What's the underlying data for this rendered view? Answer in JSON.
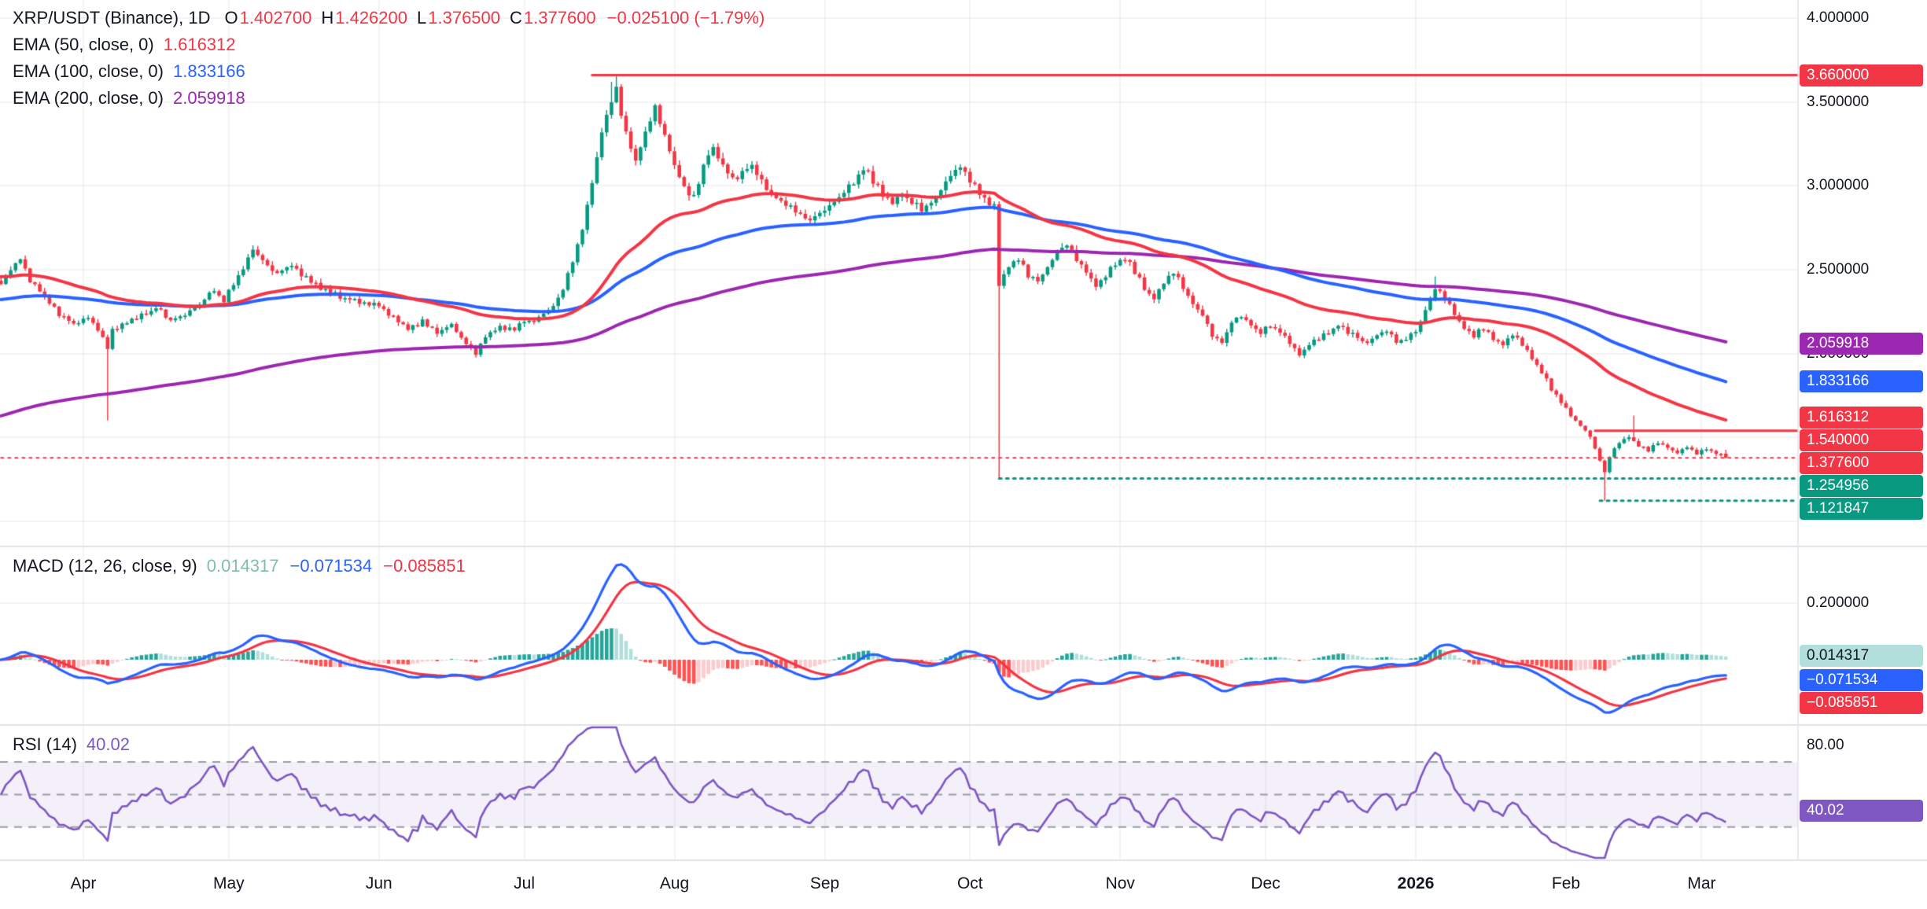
{
  "legend": {
    "symbol": "XRP/USDT (Binance), 1D",
    "o_label": "O",
    "o": "1.402700",
    "h_label": "H",
    "h": "1.426200",
    "l_label": "L",
    "l": "1.376500",
    "c_label": "C",
    "c": "1.377600",
    "change": "−0.025100 (−1.79%)",
    "ema50_label": "EMA (50, close, 0)",
    "ema50_value": "1.616312",
    "ema100_label": "EMA (100, close, 0)",
    "ema100_value": "1.833166",
    "ema200_label": "EMA (200, close, 0)",
    "ema200_value": "2.059918",
    "macd_label": "MACD (12, 26, close, 9)",
    "macd_hist": "0.014317",
    "macd_line": "−0.071534",
    "macd_signal": "−0.085851",
    "rsi_label": "RSI (14)",
    "rsi_value": "40.02"
  },
  "colors": {
    "up": "#089981",
    "down": "#f23645",
    "ema50": "#f23645",
    "ema100": "#2962ff",
    "ema200": "#9c27b0",
    "macd_line": "#2962ff",
    "macd_signal": "#f23645",
    "hist_pos": "#26a69a",
    "hist_pos_light": "#b2dfdb",
    "hist_neg": "#ff5252",
    "hist_neg_light": "#fccbcd",
    "hist_legend": "#7fbdb0",
    "rsi": "#7e57c2",
    "rsi_band_fill": "rgba(126,87,194,0.09)",
    "band_line": "#9a9daa",
    "grid": "rgba(19,23,39,0.06)",
    "divider": "#e0e3eb",
    "text": "#131722"
  },
  "axes": {
    "price_ticks": [
      {
        "label": "4.000000",
        "price": 4.0
      },
      {
        "label": "3.500000",
        "price": 3.5
      },
      {
        "label": "3.000000",
        "price": 3.0
      },
      {
        "label": "2.500000",
        "price": 2.5
      },
      {
        "label": "2.000000",
        "price": 2.0
      }
    ],
    "macd_ticks": [
      {
        "label": "0.200000",
        "value": 0.2
      }
    ],
    "rsi_ticks": [
      {
        "label": "80.00",
        "value": 80
      }
    ],
    "time_ticks": [
      {
        "label": "Apr",
        "day": 17,
        "bold": false
      },
      {
        "label": "May",
        "day": 47,
        "bold": false
      },
      {
        "label": "Jun",
        "day": 78,
        "bold": false
      },
      {
        "label": "Jul",
        "day": 108,
        "bold": false
      },
      {
        "label": "Aug",
        "day": 139,
        "bold": false
      },
      {
        "label": "Sep",
        "day": 170,
        "bold": false
      },
      {
        "label": "Oct",
        "day": 200,
        "bold": false
      },
      {
        "label": "Nov",
        "day": 231,
        "bold": false
      },
      {
        "label": "Dec",
        "day": 261,
        "bold": false
      },
      {
        "label": "2026",
        "day": 292,
        "bold": true
      },
      {
        "label": "Feb",
        "day": 323,
        "bold": false
      },
      {
        "label": "Mar",
        "day": 351,
        "bold": false
      }
    ]
  },
  "price_labels": [
    {
      "panel": "main",
      "text": "3.660000",
      "bg": "#f23645",
      "fg": "#ffffff",
      "at": 3.66
    },
    {
      "panel": "main",
      "text": "2.059918",
      "bg": "#9c27b0",
      "fg": "#ffffff",
      "at": 2.059918
    },
    {
      "panel": "main",
      "text": "1.833166",
      "bg": "#2962ff",
      "fg": "#ffffff",
      "at": 1.833166
    },
    {
      "panel": "main",
      "text": "1.616312",
      "bg": "#f23645",
      "fg": "#ffffff",
      "at": 1.616312
    },
    {
      "panel": "main",
      "text": "1.540000",
      "bg": "#f23645",
      "fg": "#ffffff",
      "at": 1.54
    },
    {
      "panel": "main",
      "text": "1.377600",
      "bg": "#f23645",
      "fg": "#ffffff",
      "at": 1.3776
    },
    {
      "panel": "main",
      "text": "1.254956",
      "bg": "#089981",
      "fg": "#ffffff",
      "at": 1.254956
    },
    {
      "panel": "main",
      "text": "1.121847",
      "bg": "#089981",
      "fg": "#ffffff",
      "at": 1.121847
    },
    {
      "panel": "macd",
      "text": "0.014317",
      "bg": "#b2dfdb",
      "fg": "#131722",
      "at": 0.014317
    },
    {
      "panel": "macd",
      "text": "−0.071534",
      "bg": "#2962ff",
      "fg": "#ffffff",
      "at": -0.071534
    },
    {
      "panel": "macd",
      "text": "−0.085851",
      "bg": "#f23645",
      "fg": "#ffffff",
      "at": -0.085851
    },
    {
      "panel": "rsi",
      "text": "40.02",
      "bg": "#7e57c2",
      "fg": "#ffffff",
      "at": 40.02
    }
  ],
  "chart_data": {
    "type": "candlestick",
    "title": "XRP/USDT (Binance), 1D",
    "symbol": "XRP/USDT",
    "exchange": "Binance",
    "interval": "1D",
    "last": {
      "open": 1.4027,
      "high": 1.4262,
      "low": 1.3765,
      "close": 1.3776,
      "change": -0.0251,
      "change_pct": -1.79
    },
    "days": 357,
    "price_range": [
      0.849,
      4.108
    ],
    "macd_range": [
      -0.2306,
      0.4
    ],
    "rsi_range": [
      9.55,
      92.8
    ],
    "close_keypoints": [
      [
        0,
        2.42
      ],
      [
        2,
        2.5
      ],
      [
        4,
        2.56
      ],
      [
        6,
        2.44
      ],
      [
        9,
        2.34
      ],
      [
        12,
        2.23
      ],
      [
        15,
        2.18
      ],
      [
        18,
        2.22
      ],
      [
        21,
        2.1
      ],
      [
        22,
        2.03
      ],
      [
        23,
        2.14
      ],
      [
        26,
        2.18
      ],
      [
        29,
        2.23
      ],
      [
        32,
        2.27
      ],
      [
        35,
        2.2
      ],
      [
        38,
        2.23
      ],
      [
        41,
        2.29
      ],
      [
        44,
        2.38
      ],
      [
        46,
        2.32
      ],
      [
        49,
        2.46
      ],
      [
        52,
        2.62
      ],
      [
        54,
        2.56
      ],
      [
        57,
        2.47
      ],
      [
        60,
        2.53
      ],
      [
        63,
        2.45
      ],
      [
        66,
        2.39
      ],
      [
        70,
        2.34
      ],
      [
        74,
        2.31
      ],
      [
        78,
        2.28
      ],
      [
        81,
        2.21
      ],
      [
        84,
        2.15
      ],
      [
        87,
        2.19
      ],
      [
        90,
        2.13
      ],
      [
        93,
        2.17
      ],
      [
        96,
        2.06
      ],
      [
        98,
        1.99
      ],
      [
        100,
        2.1
      ],
      [
        103,
        2.16
      ],
      [
        106,
        2.14
      ],
      [
        108,
        2.19
      ],
      [
        111,
        2.21
      ],
      [
        114,
        2.28
      ],
      [
        116,
        2.38
      ],
      [
        118,
        2.56
      ],
      [
        120,
        2.74
      ],
      [
        122,
        3.02
      ],
      [
        124,
        3.32
      ],
      [
        126,
        3.52
      ],
      [
        127,
        3.58
      ],
      [
        128,
        3.43
      ],
      [
        130,
        3.22
      ],
      [
        131,
        3.13
      ],
      [
        133,
        3.33
      ],
      [
        135,
        3.46
      ],
      [
        137,
        3.29
      ],
      [
        139,
        3.13
      ],
      [
        141,
        2.99
      ],
      [
        143,
        2.93
      ],
      [
        145,
        3.13
      ],
      [
        147,
        3.22
      ],
      [
        149,
        3.11
      ],
      [
        151,
        3.03
      ],
      [
        153,
        3.09
      ],
      [
        155,
        3.12
      ],
      [
        157,
        3.03
      ],
      [
        159,
        2.96
      ],
      [
        161,
        2.91
      ],
      [
        164,
        2.85
      ],
      [
        167,
        2.79
      ],
      [
        170,
        2.86
      ],
      [
        173,
        2.93
      ],
      [
        176,
        3.03
      ],
      [
        178,
        3.11
      ],
      [
        180,
        3.03
      ],
      [
        182,
        2.95
      ],
      [
        184,
        2.89
      ],
      [
        186,
        2.95
      ],
      [
        188,
        2.91
      ],
      [
        190,
        2.86
      ],
      [
        192,
        2.91
      ],
      [
        194,
        2.97
      ],
      [
        196,
        3.06
      ],
      [
        198,
        3.11
      ],
      [
        200,
        3.03
      ],
      [
        202,
        2.96
      ],
      [
        204,
        2.9
      ],
      [
        205,
        2.88
      ],
      [
        206,
        2.42
      ],
      [
        208,
        2.51
      ],
      [
        210,
        2.56
      ],
      [
        212,
        2.47
      ],
      [
        214,
        2.43
      ],
      [
        216,
        2.51
      ],
      [
        218,
        2.61
      ],
      [
        220,
        2.64
      ],
      [
        222,
        2.56
      ],
      [
        224,
        2.49
      ],
      [
        226,
        2.41
      ],
      [
        228,
        2.47
      ],
      [
        230,
        2.53
      ],
      [
        232,
        2.57
      ],
      [
        234,
        2.49
      ],
      [
        236,
        2.39
      ],
      [
        238,
        2.33
      ],
      [
        240,
        2.43
      ],
      [
        242,
        2.49
      ],
      [
        244,
        2.39
      ],
      [
        246,
        2.29
      ],
      [
        248,
        2.23
      ],
      [
        250,
        2.11
      ],
      [
        252,
        2.06
      ],
      [
        254,
        2.19
      ],
      [
        256,
        2.23
      ],
      [
        258,
        2.17
      ],
      [
        260,
        2.13
      ],
      [
        262,
        2.17
      ],
      [
        264,
        2.13
      ],
      [
        266,
        2.06
      ],
      [
        268,
        1.99
      ],
      [
        270,
        2.05
      ],
      [
        272,
        2.09
      ],
      [
        274,
        2.13
      ],
      [
        276,
        2.17
      ],
      [
        278,
        2.13
      ],
      [
        280,
        2.09
      ],
      [
        282,
        2.06
      ],
      [
        284,
        2.11
      ],
      [
        286,
        2.13
      ],
      [
        288,
        2.07
      ],
      [
        290,
        2.09
      ],
      [
        292,
        2.13
      ],
      [
        294,
        2.26
      ],
      [
        296,
        2.39
      ],
      [
        298,
        2.33
      ],
      [
        300,
        2.23
      ],
      [
        302,
        2.16
      ],
      [
        304,
        2.11
      ],
      [
        306,
        2.15
      ],
      [
        308,
        2.09
      ],
      [
        310,
        2.05
      ],
      [
        312,
        2.11
      ],
      [
        314,
        2.05
      ],
      [
        316,
        1.97
      ],
      [
        318,
        1.89
      ],
      [
        320,
        1.79
      ],
      [
        322,
        1.71
      ],
      [
        324,
        1.63
      ],
      [
        326,
        1.57
      ],
      [
        328,
        1.51
      ],
      [
        330,
        1.36
      ],
      [
        331,
        1.29
      ],
      [
        332,
        1.39
      ],
      [
        334,
        1.47
      ],
      [
        336,
        1.51
      ],
      [
        337,
        1.48
      ],
      [
        338,
        1.45
      ],
      [
        340,
        1.42
      ],
      [
        342,
        1.47
      ],
      [
        344,
        1.44
      ],
      [
        346,
        1.41
      ],
      [
        348,
        1.44
      ],
      [
        350,
        1.4
      ],
      [
        352,
        1.43
      ],
      [
        354,
        1.41
      ],
      [
        356,
        1.3776
      ]
    ],
    "overrides": [
      {
        "day": 22,
        "low": 1.6
      },
      {
        "day": 126,
        "high": 3.62
      },
      {
        "day": 127,
        "high": 3.66
      },
      {
        "day": 206,
        "low": 1.254956
      },
      {
        "day": 296,
        "high": 2.46
      },
      {
        "day": 331,
        "low": 1.121847
      },
      {
        "day": 337,
        "high": 1.63
      }
    ],
    "levels": [
      {
        "price": 3.66,
        "color": "#f23645",
        "style": "solid",
        "from_day": 122,
        "width": 3
      },
      {
        "price": 1.54,
        "color": "#f23645",
        "style": "solid",
        "from_day": 329,
        "width": 3
      },
      {
        "price": 1.3776,
        "color": "#f23645",
        "style": "dotted",
        "from_day": 0,
        "width": 2
      },
      {
        "price": 1.254956,
        "color": "#089981",
        "style": "dotted",
        "from_day": 206,
        "width": 3
      },
      {
        "price": 1.121847,
        "color": "#089981",
        "style": "dotted",
        "from_day": 330,
        "width": 3
      }
    ],
    "emas": [
      {
        "period": 50,
        "seed": 2.46,
        "color_key": "ema50",
        "last_value": 1.616312
      },
      {
        "period": 100,
        "seed": 2.32,
        "color_key": "ema100",
        "last_value": 1.833166
      },
      {
        "period": 200,
        "seed": 1.62,
        "color_key": "ema200",
        "last_value": 2.059918
      }
    ],
    "macd": {
      "fast": 12,
      "slow": 26,
      "signal": 9,
      "last_hist": 0.014317,
      "last_macd": -0.071534,
      "last_signal": -0.085851
    },
    "rsi": {
      "period": 14,
      "last": 40.02,
      "upper": 70,
      "middle": 50,
      "lower": 30
    }
  }
}
